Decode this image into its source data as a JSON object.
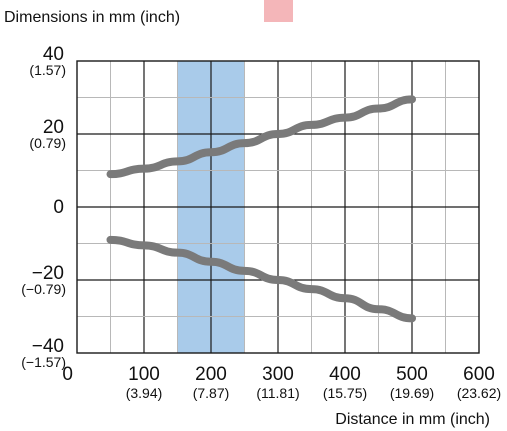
{
  "chart_data": {
    "type": "line",
    "title": "",
    "ylabel": "Dimensions in mm (inch)",
    "xlabel": "Distance in mm (inch)",
    "xlim": [
      0,
      600
    ],
    "ylim": [
      -40,
      40
    ],
    "grid": true,
    "legend_marker_color": "#f4b6b9",
    "x_ticks": [
      {
        "value": 0,
        "label": "0",
        "sub": ""
      },
      {
        "value": 100,
        "label": "100",
        "sub": "(3.94)"
      },
      {
        "value": 200,
        "label": "200",
        "sub": "(7.87)"
      },
      {
        "value": 300,
        "label": "300",
        "sub": "(11.81)"
      },
      {
        "value": 400,
        "label": "400",
        "sub": "(15.75)"
      },
      {
        "value": 500,
        "label": "500",
        "sub": "(19.69)"
      },
      {
        "value": 600,
        "label": "600",
        "sub": "(23.62)"
      }
    ],
    "y_ticks": [
      {
        "value": 40,
        "label": "40",
        "sub": "(1.57)"
      },
      {
        "value": 20,
        "label": "20",
        "sub": "(0.79)"
      },
      {
        "value": 0,
        "label": "0",
        "sub": ""
      },
      {
        "value": -20,
        "label": "−20",
        "sub": "(−0.79)"
      },
      {
        "value": -40,
        "label": "−40",
        "sub": "(−1.57)"
      }
    ],
    "highlight_band": {
      "x_start": 150,
      "x_end": 250,
      "color": "#a9cbea"
    },
    "series": [
      {
        "color": "#7a7a7a",
        "x": [
          50,
          100,
          150,
          200,
          250,
          300,
          350,
          400,
          450,
          500
        ],
        "y": [
          9,
          10.5,
          12.5,
          15,
          17.5,
          20,
          22.5,
          24.5,
          27,
          29.5
        ]
      },
      {
        "color": "#7a7a7a",
        "x": [
          50,
          100,
          150,
          200,
          250,
          300,
          350,
          400,
          450,
          500
        ],
        "y": [
          -9,
          -10.5,
          -12.5,
          -15,
          -17.5,
          -20,
          -22.5,
          -25,
          -28,
          -30.5
        ]
      }
    ]
  }
}
